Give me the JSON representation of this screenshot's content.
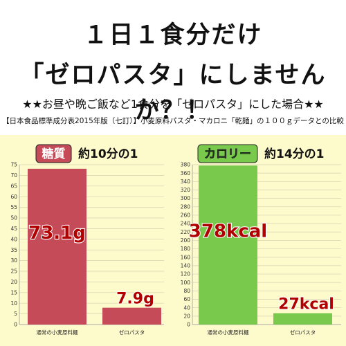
{
  "headline": {
    "line1": "１日１食分だけ",
    "line2": "「ゼロパスタ」にしませんか？！"
  },
  "subtitle": "★★お昼や晩ご飯など1食分を「ゼロパスタ」にした場合★★",
  "source_note": "【日本食品標準成分表2015年版（七訂）】小麦原料パスタ・マカロニ「乾麺」の１００ｇデータとの比較",
  "colors": {
    "carb": "#c54b59",
    "calorie": "#79c94d",
    "panel": "#fdfbcc",
    "label_red": "#b00000",
    "label_green": "#2d8a1a"
  },
  "chart_data": [
    {
      "type": "bar",
      "badge": "糖質",
      "comparison": "約10分の1",
      "categories": [
        "通常の小麦原料麺",
        "ゼロパスタ"
      ],
      "values": [
        73.1,
        7.9
      ],
      "value_labels": [
        "73.1g",
        "7.9g"
      ],
      "ylim": [
        0,
        75
      ],
      "yticks": [
        0,
        5,
        10,
        15,
        20,
        25,
        30,
        35,
        40,
        45,
        50,
        55,
        60,
        65,
        70,
        75
      ],
      "grid": true
    },
    {
      "type": "bar",
      "badge": "カロリー",
      "comparison": "約14分の1",
      "categories": [
        "通常の小麦原料麺",
        "ゼロパスタ"
      ],
      "values": [
        378,
        27
      ],
      "value_labels": [
        "378kcal",
        "27kcal"
      ],
      "ylim": [
        0,
        380
      ],
      "yticks": [
        0,
        20,
        40,
        60,
        80,
        100,
        120,
        140,
        160,
        180,
        200,
        220,
        240,
        260,
        280,
        300,
        320,
        340,
        360,
        380
      ],
      "grid": true
    }
  ]
}
